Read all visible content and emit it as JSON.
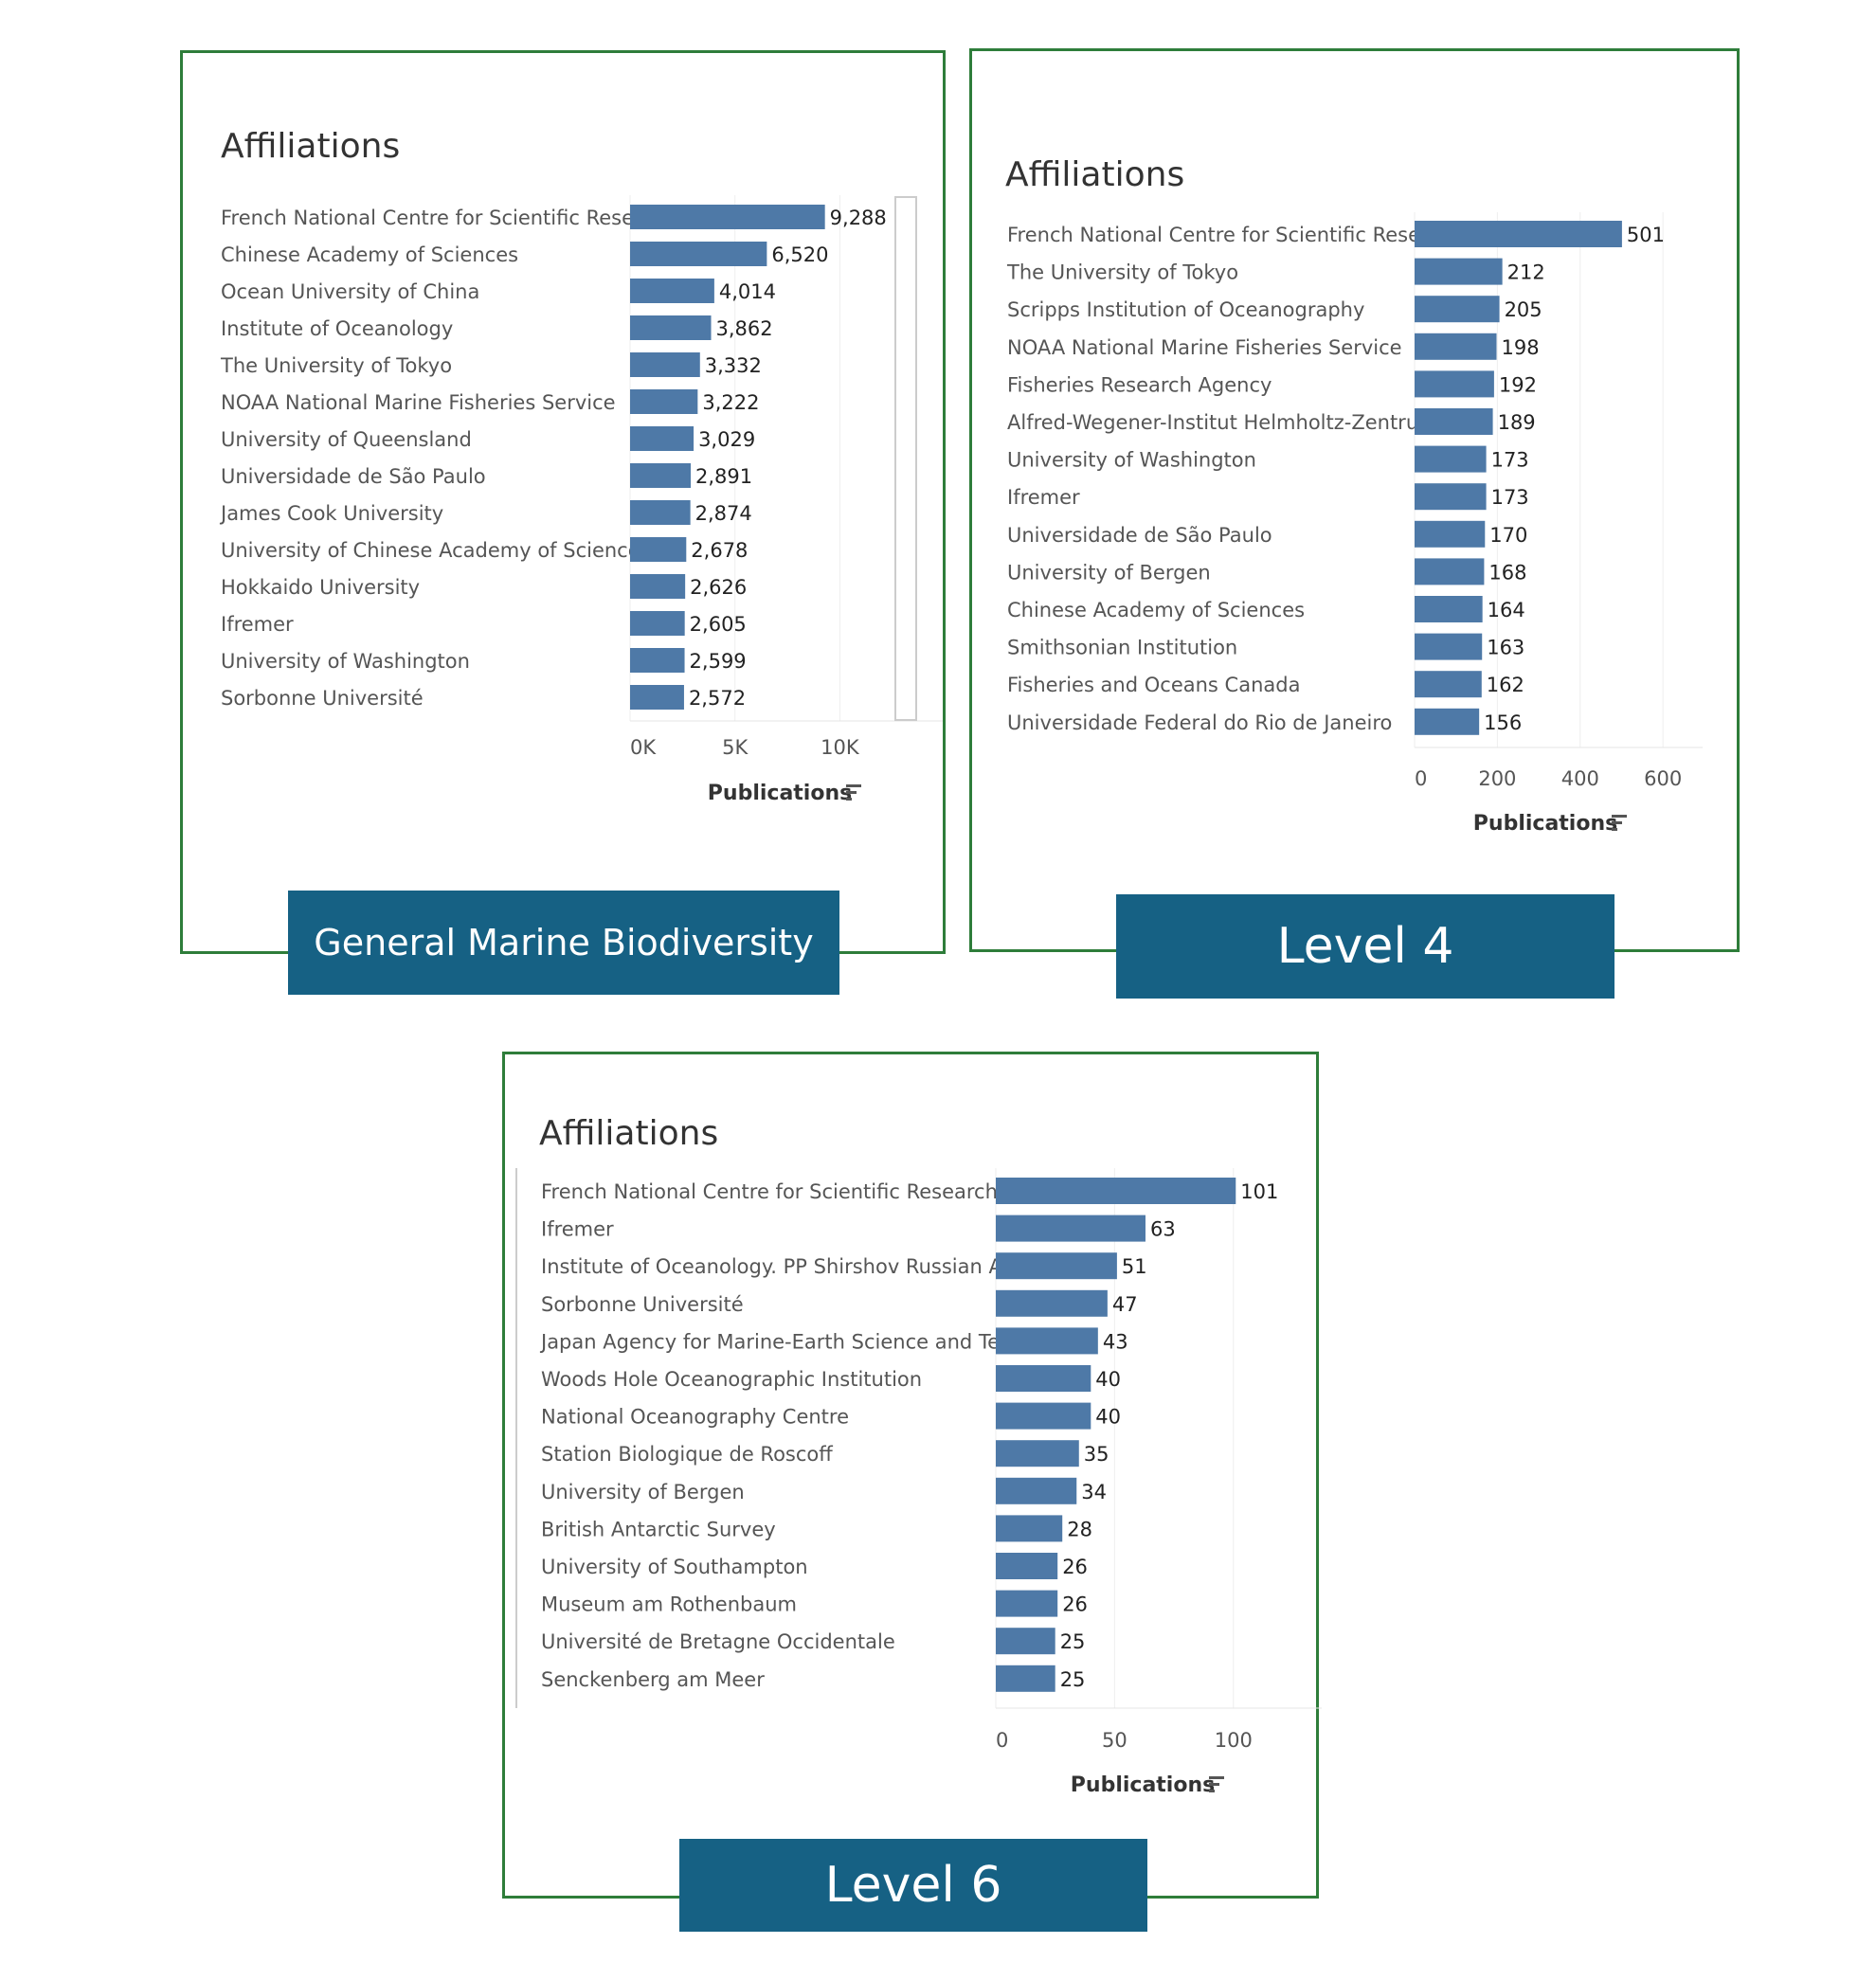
{
  "colors": {
    "bar": "#4e79a7",
    "frame": "#2e7d3a",
    "caption_bg": "#166184",
    "caption_text": "#ffffff",
    "label_text": "#555555",
    "title_text": "#333333"
  },
  "captions": [
    "General Marine Biodiversity",
    "Level 4",
    "Level 6"
  ],
  "chart_data": [
    {
      "type": "bar",
      "orientation": "horizontal",
      "title": "Affiliations",
      "xlabel": "Publications",
      "xlim": [
        0,
        14000
      ],
      "xticks": [
        "0K",
        "5K",
        "10K"
      ],
      "xtick_values": [
        0,
        5000,
        10000
      ],
      "categories": [
        "French National Centre for Scientific Research",
        "Chinese Academy of Sciences",
        "Ocean University of China",
        "Institute of Oceanology",
        "The University of Tokyo",
        "NOAA National Marine Fisheries Service",
        "University of Queensland",
        "Universidade de São Paulo",
        "James Cook University",
        "University of Chinese Academy of Sciences",
        "Hokkaido University",
        "Ifremer",
        "University of Washington",
        "Sorbonne Université"
      ],
      "values": [
        9288,
        6520,
        4014,
        3862,
        3332,
        3222,
        3029,
        2891,
        2874,
        2678,
        2626,
        2605,
        2599,
        2572
      ],
      "value_labels": [
        "9,288",
        "6,520",
        "4,014",
        "3,862",
        "3,332",
        "3,222",
        "3,029",
        "2,891",
        "2,874",
        "2,678",
        "2,626",
        "2,605",
        "2,599",
        "2,572"
      ]
    },
    {
      "type": "bar",
      "orientation": "horizontal",
      "title": "Affiliations",
      "xlabel": "Publications",
      "xlim": [
        0,
        650
      ],
      "xticks": [
        "0",
        "200",
        "400",
        "600"
      ],
      "xtick_values": [
        0,
        200,
        400,
        600
      ],
      "categories": [
        "French National Centre for Scientific Research",
        "The University of Tokyo",
        "Scripps Institution of Oceanography",
        "NOAA National Marine Fisheries Service",
        "Fisheries Research Agency",
        "Alfred-Wegener-Institut Helmholtz-Zentrum für..",
        "University of Washington",
        "Ifremer",
        "Universidade de São Paulo",
        "University of Bergen",
        "Chinese Academy of Sciences",
        "Smithsonian Institution",
        "Fisheries and Oceans Canada",
        "Universidade Federal do Rio de Janeiro"
      ],
      "values": [
        501,
        212,
        205,
        198,
        192,
        189,
        173,
        173,
        170,
        168,
        164,
        163,
        162,
        156
      ],
      "value_labels": [
        "501",
        "212",
        "205",
        "198",
        "192",
        "189",
        "173",
        "173",
        "170",
        "168",
        "164",
        "163",
        "162",
        "156"
      ]
    },
    {
      "type": "bar",
      "orientation": "horizontal",
      "title": "Affiliations",
      "xlabel": "Publications",
      "xlim": [
        0,
        130
      ],
      "xticks": [
        "0",
        "50",
        "100"
      ],
      "xtick_values": [
        0,
        50,
        100
      ],
      "categories": [
        "French National Centre for Scientific Research",
        "Ifremer",
        "Institute of Oceanology. PP Shirshov Russian Ac..",
        "Sorbonne Université",
        "Japan Agency for Marine-Earth Science and Tec..",
        "Woods Hole Oceanographic Institution",
        "National Oceanography Centre",
        "Station Biologique de Roscoff",
        "University of Bergen",
        "British Antarctic Survey",
        "University of Southampton",
        "Museum am Rothenbaum",
        "Université de Bretagne Occidentale",
        "Senckenberg am Meer"
      ],
      "values": [
        101,
        63,
        51,
        47,
        43,
        40,
        40,
        35,
        34,
        28,
        26,
        26,
        25,
        25
      ],
      "value_labels": [
        "101",
        "63",
        "51",
        "47",
        "43",
        "40",
        "40",
        "35",
        "34",
        "28",
        "26",
        "26",
        "25",
        "25"
      ]
    }
  ]
}
